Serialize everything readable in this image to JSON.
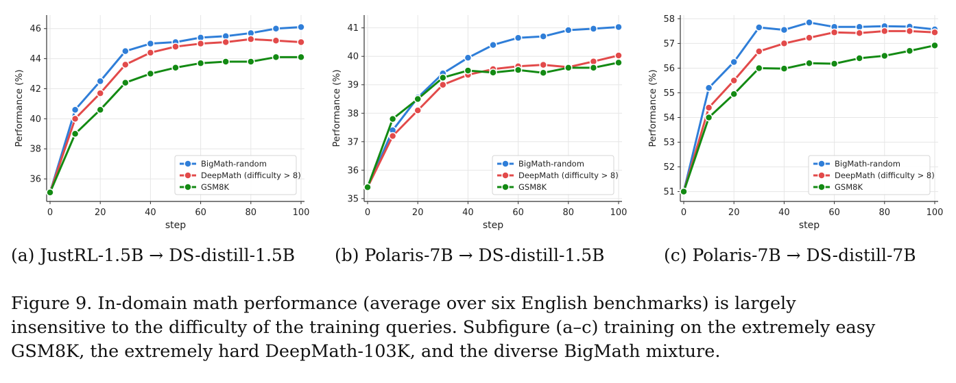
{
  "colors": {
    "BigMath-random": "#2f7ed8",
    "DeepMath (difficulty > 8)": "#e24a4a",
    "GSM8K": "#138a13"
  },
  "chart_data": [
    {
      "type": "line",
      "xlabel": "step",
      "ylabel": "Performance (%)",
      "xlim": [
        0,
        100
      ],
      "ylim": [
        34.5,
        46.9
      ],
      "xticks": [
        0,
        20,
        40,
        60,
        80,
        100
      ],
      "yticks": [
        36,
        38,
        40,
        42,
        44,
        46
      ],
      "grid": true,
      "legend_position": "lower-right",
      "x": [
        0,
        10,
        20,
        30,
        40,
        50,
        60,
        70,
        80,
        90,
        100
      ],
      "series": [
        {
          "name": "BigMath-random",
          "values": [
            35.1,
            40.6,
            42.5,
            44.5,
            45.0,
            45.1,
            45.4,
            45.5,
            45.7,
            46.0,
            46.1
          ]
        },
        {
          "name": "DeepMath (difficulty > 8)",
          "values": [
            35.1,
            40.0,
            41.7,
            43.6,
            44.4,
            44.8,
            45.0,
            45.1,
            45.3,
            45.2,
            45.1
          ]
        },
        {
          "name": "GSM8K",
          "values": [
            35.1,
            39.0,
            40.6,
            42.4,
            43.0,
            43.4,
            43.7,
            43.8,
            43.8,
            44.1,
            44.1
          ]
        }
      ]
    },
    {
      "type": "line",
      "xlabel": "step",
      "ylabel": "Performance (%)",
      "xlim": [
        0,
        100
      ],
      "ylim": [
        34.9,
        41.45
      ],
      "xticks": [
        0,
        20,
        40,
        60,
        80,
        100
      ],
      "yticks": [
        35,
        36,
        37,
        38,
        39,
        40,
        41
      ],
      "grid": true,
      "legend_position": "lower-right",
      "x": [
        0,
        10,
        20,
        30,
        40,
        50,
        60,
        70,
        80,
        90,
        100
      ],
      "series": [
        {
          "name": "BigMath-random",
          "values": [
            35.4,
            37.4,
            38.55,
            39.4,
            39.95,
            40.4,
            40.65,
            40.7,
            40.92,
            40.97,
            41.03
          ]
        },
        {
          "name": "DeepMath (difficulty > 8)",
          "values": [
            35.4,
            37.2,
            38.1,
            39.0,
            39.35,
            39.55,
            39.65,
            39.7,
            39.62,
            39.82,
            40.03
          ]
        },
        {
          "name": "GSM8K",
          "values": [
            35.4,
            37.8,
            38.5,
            39.25,
            39.5,
            39.43,
            39.52,
            39.42,
            39.6,
            39.6,
            39.78
          ]
        }
      ]
    },
    {
      "type": "line",
      "xlabel": "step",
      "ylabel": "Performance (%)",
      "xlim": [
        0,
        100
      ],
      "ylim": [
        50.6,
        58.15
      ],
      "xticks": [
        0,
        20,
        40,
        60,
        80,
        100
      ],
      "yticks": [
        51,
        52,
        53,
        54,
        55,
        56,
        57,
        58
      ],
      "grid": true,
      "legend_position": "lower-right",
      "x": [
        0,
        10,
        20,
        30,
        40,
        50,
        60,
        70,
        80,
        90,
        100
      ],
      "series": [
        {
          "name": "BigMath-random",
          "values": [
            51.0,
            55.2,
            56.25,
            57.65,
            57.55,
            57.85,
            57.67,
            57.67,
            57.7,
            57.68,
            57.57
          ]
        },
        {
          "name": "DeepMath (difficulty > 8)",
          "values": [
            51.0,
            54.4,
            55.5,
            56.68,
            57.0,
            57.23,
            57.45,
            57.42,
            57.5,
            57.5,
            57.45
          ]
        },
        {
          "name": "GSM8K",
          "values": [
            51.0,
            54.0,
            54.95,
            56.0,
            55.98,
            56.2,
            56.18,
            56.4,
            56.5,
            56.7,
            56.92
          ]
        }
      ]
    }
  ],
  "captions": {
    "a": "(a) JustRL-1.5B → DS-distill-1.5B",
    "b": "(b) Polaris-7B → DS-distill-1.5B",
    "c": "(c) Polaris-7B → DS-distill-7B"
  },
  "figure_caption": {
    "line1": "Figure 9. In-domain math performance (average over six English benchmarks) is largely",
    "line2": "insensitive to the difficulty of the training queries. Subfigure (a–c) training on the extremely easy",
    "line3": "GSM8K, the extremely hard DeepMath-103K, and the diverse BigMath mixture."
  }
}
